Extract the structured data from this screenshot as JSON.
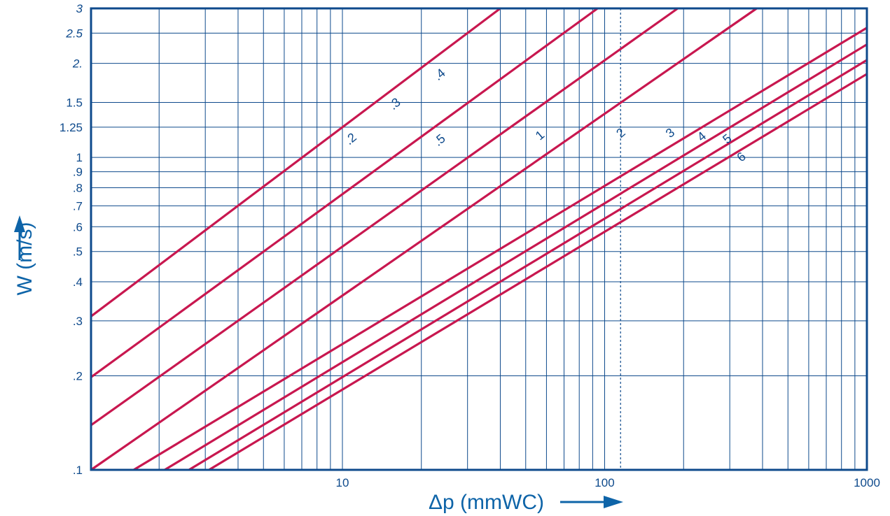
{
  "chart_data": {
    "type": "line",
    "xlabel": "Δp (mmWC)",
    "ylabel": "W (m/s)",
    "x_scale": "log",
    "y_scale": "log",
    "xlim": [
      1.1,
      1000
    ],
    "ylim": [
      0.1,
      3
    ],
    "grid": true,
    "reference_line_x": 115,
    "x_tick_labels": [
      {
        "value": 10,
        "label": "10"
      },
      {
        "value": 100,
        "label": "100"
      },
      {
        "value": 1000,
        "label": "1000"
      }
    ],
    "y_tick_labels": [
      {
        "value": 3,
        "label": "3"
      },
      {
        "value": 2.5,
        "label": "2.5"
      },
      {
        "value": 2,
        "label": "2."
      },
      {
        "value": 1.5,
        "label": "1.5"
      },
      {
        "value": 1.25,
        "label": "1.25"
      },
      {
        "value": 1,
        "label": "1"
      },
      {
        "value": 0.9,
        "label": ".9"
      },
      {
        "value": 0.8,
        "label": ".8"
      },
      {
        "value": 0.7,
        "label": ".7"
      },
      {
        "value": 0.6,
        "label": ".6"
      },
      {
        "value": 0.5,
        "label": ".5"
      },
      {
        "value": 0.4,
        "label": ".4"
      },
      {
        "value": 0.3,
        "label": ".3"
      },
      {
        "value": 0.2,
        "label": ".2"
      },
      {
        "value": 0.1,
        "label": ".1"
      }
    ],
    "series": [
      {
        "name": ".2 .3 .4",
        "color": "#c8174f",
        "points": [
          [
            1.1,
            0.31
          ],
          [
            40,
            3
          ]
        ],
        "labels": [
          {
            "text": ".2",
            "x": 11,
            "y": 1.12
          },
          {
            "text": ".3",
            "x": 16.2,
            "y": 1.45
          },
          {
            "text": ".4",
            "x": 24,
            "y": 1.8
          }
        ]
      },
      {
        "name": ".5",
        "color": "#c8174f",
        "points": [
          [
            1.1,
            0.198
          ],
          [
            94,
            3
          ]
        ],
        "labels": [
          {
            "text": ".5",
            "x": 24,
            "y": 1.11
          }
        ]
      },
      {
        "name": "1",
        "color": "#c8174f",
        "points": [
          [
            1.1,
            0.139
          ],
          [
            190,
            3
          ]
        ],
        "labels": [
          {
            "text": "1",
            "x": 58,
            "y": 1.15
          }
        ]
      },
      {
        "name": "2",
        "color": "#c8174f",
        "points": [
          [
            1.1,
            0.1
          ],
          [
            380,
            3
          ]
        ],
        "labels": [
          {
            "text": "2",
            "x": 118,
            "y": 1.17
          }
        ]
      },
      {
        "name": "3",
        "color": "#c8174f",
        "points": [
          [
            1.6,
            0.1
          ],
          [
            1000,
            2.6
          ]
        ],
        "labels": [
          {
            "text": "3",
            "x": 182,
            "y": 1.17
          }
        ]
      },
      {
        "name": "4",
        "color": "#c8174f",
        "points": [
          [
            2.1,
            0.1
          ],
          [
            1000,
            2.3
          ]
        ],
        "labels": [
          {
            "text": "4",
            "x": 240,
            "y": 1.14
          }
        ]
      },
      {
        "name": "5",
        "color": "#c8174f",
        "points": [
          [
            2.6,
            0.1
          ],
          [
            1000,
            2.05
          ]
        ],
        "labels": [
          {
            "text": "5",
            "x": 300,
            "y": 1.12
          }
        ]
      },
      {
        "name": "6",
        "color": "#c8174f",
        "points": [
          [
            3.1,
            0.1
          ],
          [
            1000,
            1.85
          ]
        ],
        "labels": [
          {
            "text": "6",
            "x": 340,
            "y": 0.98
          }
        ]
      }
    ]
  },
  "colors": {
    "grid": "#0e4a8c",
    "frame": "#0e4a8c",
    "curve": "#c8174f",
    "axis_title": "#0e64a8",
    "text": "#0e4a8c"
  }
}
